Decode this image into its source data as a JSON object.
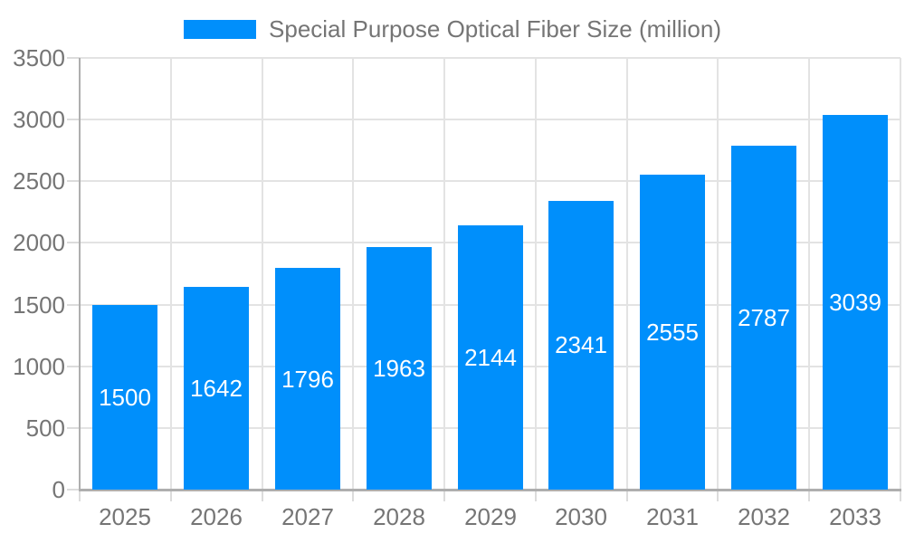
{
  "legend": {
    "label": "Special Purpose Optical Fiber Size (million)"
  },
  "chart_data": {
    "type": "bar",
    "categories": [
      "2025",
      "2026",
      "2027",
      "2028",
      "2029",
      "2030",
      "2031",
      "2032",
      "2033"
    ],
    "values": [
      1500,
      1642,
      1796,
      1963,
      2144,
      2341,
      2555,
      2787,
      3039
    ],
    "series_name": "Special Purpose Optical Fiber Size (million)",
    "title": "Special Purpose Optical Fiber Size (million)",
    "xlabel": "",
    "ylabel": "",
    "ylim": [
      0,
      3500
    ],
    "ytick_step": 500,
    "yticks": [
      0,
      500,
      1000,
      1500,
      2000,
      2500,
      3000,
      3500
    ],
    "grid": true,
    "legend_position": "top-center",
    "value_labels": "inside-center"
  },
  "colors": {
    "bar": "#008FFB",
    "grid": "#e3e3e3",
    "axis": "#aeaeae",
    "tick": "#dcdcdc",
    "label_text": "#757575",
    "value_text": "#ffffff",
    "background": "#ffffff"
  }
}
